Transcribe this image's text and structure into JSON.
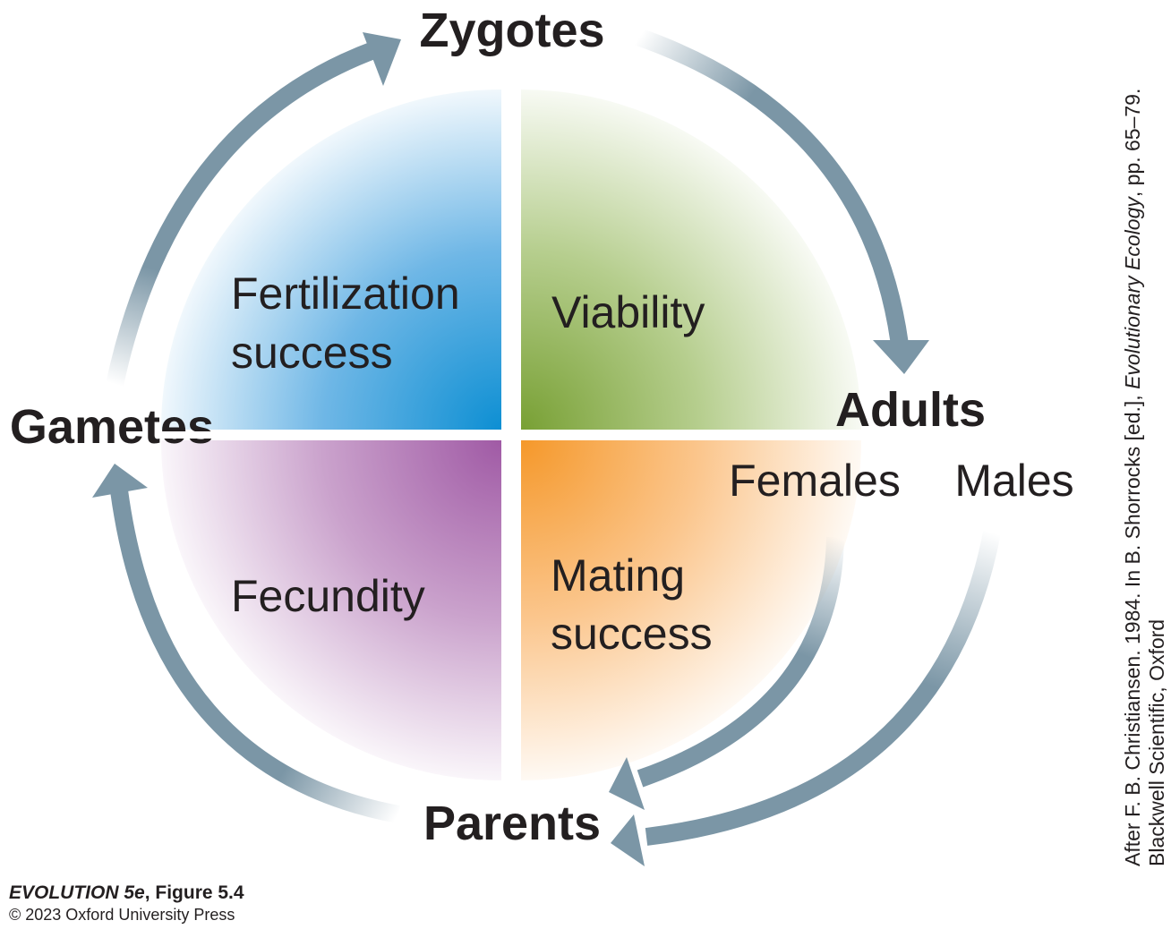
{
  "stages": {
    "zygotes": "Zygotes",
    "adults": "Adults",
    "parents": "Parents",
    "gametes": "Gametes"
  },
  "components": {
    "fertilization_line1": "Fertilization",
    "fertilization_line2": "success",
    "viability": "Viability",
    "fecundity": "Fecundity",
    "mating_line1": "Mating",
    "mating_line2": "success"
  },
  "sexes": {
    "females": "Females",
    "males": "Males"
  },
  "credit": {
    "book": "EVOLUTION 5e",
    "figure": ", Figure 5.4",
    "copyright": "© 2023 Oxford University Press"
  },
  "attribution": {
    "part1": "After F. B. Christiansen. 1984. In B. Shorrocks [ed.], ",
    "journal": "Evolutionary Ecology",
    "part2": ", pp. 65–79.",
    "line2": "Blackwell Scientific, Oxford"
  },
  "colors": {
    "arrow": "#7b96a6",
    "fertilization": "#0d8fd3",
    "viability": "#78a034",
    "fecundity": "#a05aa5",
    "mating": "#f5982a"
  }
}
